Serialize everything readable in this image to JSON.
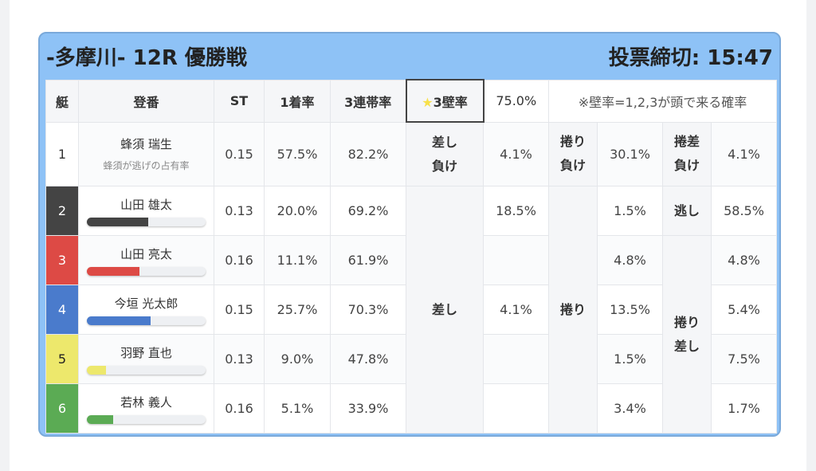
{
  "header": {
    "title": "-多摩川- 12R 優勝戦",
    "deadline": "投票締切: 15:47"
  },
  "table_head": {
    "lane": "艇",
    "name": "登番",
    "st": "ST",
    "first_rate": "1着率",
    "top3_rate": "3連帯率",
    "star": "★",
    "wall_label": "3壁率",
    "wall_value": "75.0%",
    "note": "※壁率=1,2,3が頭で来る確率"
  },
  "racers": [
    {
      "lane": "1",
      "name": "蜂須 瑞生",
      "sub": "蜂須が逃げの占有率",
      "st": "0.15",
      "first": "57.5%",
      "top3": "82.2%",
      "lane_color": "#ffffff",
      "text_color": "#333333"
    },
    {
      "lane": "2",
      "name": "山田 雄太",
      "st": "0.13",
      "first": "20.0%",
      "top3": "69.2%",
      "lane_color": "#444444",
      "text_color": "#ffffff",
      "bar": 52
    },
    {
      "lane": "3",
      "name": "山田 亮太",
      "st": "0.16",
      "first": "11.1%",
      "top3": "61.9%",
      "lane_color": "#dd4a45",
      "text_color": "#ffffff",
      "bar": 44
    },
    {
      "lane": "4",
      "name": "今垣 光太郎",
      "st": "0.15",
      "first": "25.7%",
      "top3": "70.3%",
      "lane_color": "#4a7bcc",
      "text_color": "#ffffff",
      "bar": 54
    },
    {
      "lane": "5",
      "name": "羽野 直也",
      "st": "0.13",
      "first": "9.0%",
      "top3": "47.8%",
      "lane_color": "#ede86c",
      "text_color": "#222222",
      "bar": 16
    },
    {
      "lane": "6",
      "name": "若林 義人",
      "st": "0.16",
      "first": "5.1%",
      "top3": "33.9%",
      "lane_color": "#5bab54",
      "text_color": "#ffffff",
      "bar": 22
    }
  ],
  "kimarite": {
    "sashi_make": "差し\n負け",
    "sashi": "差し",
    "sashi_vals": [
      "4.1%",
      "18.5%",
      "",
      "4.1%",
      "",
      ""
    ],
    "makuri_make": "捲り\n負け",
    "makuri": "捲り",
    "makuri_vals": [
      "30.1%",
      "1.5%",
      "4.8%",
      "13.5%",
      "1.5%",
      "3.4%"
    ],
    "makurisashi_make": "捲差\n負け",
    "nigashi": "逃し",
    "makurisashi": "捲り\n差し",
    "makurisashi_vals": [
      "4.1%",
      "58.5%",
      "4.8%",
      "5.4%",
      "7.5%",
      "1.7%"
    ]
  }
}
